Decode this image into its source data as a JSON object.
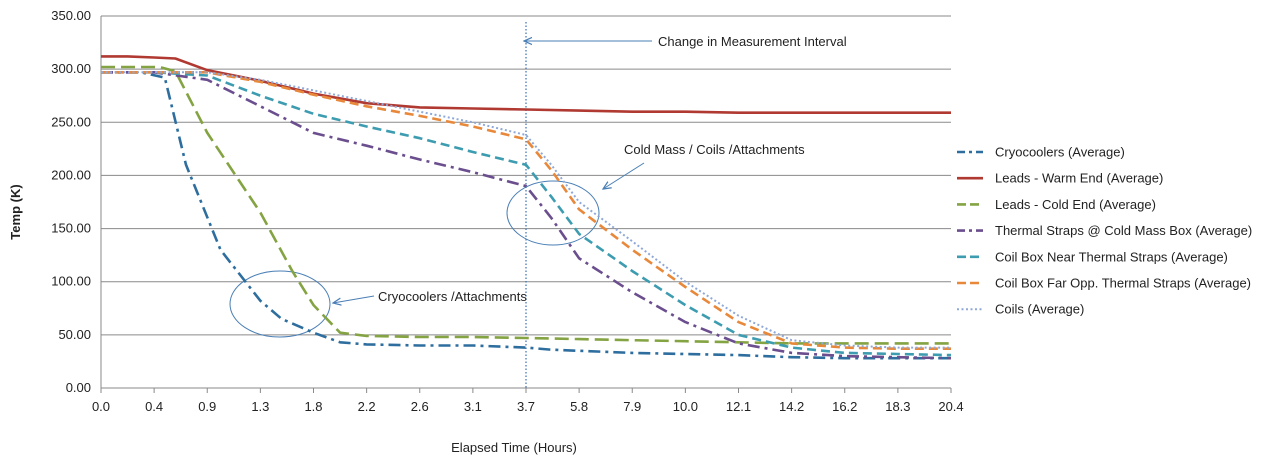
{
  "chart_data": {
    "type": "line",
    "title": "",
    "xlabel": "Elapsed Time (Hours)",
    "ylabel": "Temp (K)",
    "ylim": [
      0,
      350
    ],
    "y_ticks": [
      "0.00",
      "50.00",
      "100.00",
      "150.00",
      "200.00",
      "250.00",
      "300.00",
      "350.00"
    ],
    "categories": [
      "0.0",
      "0.4",
      "0.9",
      "1.3",
      "1.8",
      "2.2",
      "2.6",
      "3.1",
      "3.7",
      "5.8",
      "7.9",
      "10.0",
      "12.1",
      "14.2",
      "16.2",
      "18.3",
      "20.4"
    ],
    "grid": "horizontal",
    "legend_position": "right",
    "series": [
      {
        "name": "Cryocoolers (Average)",
        "color": "#2e6e9e",
        "dash": "dashdot",
        "values": [
          [
            0,
            297
          ],
          [
            0.3,
            297
          ],
          [
            0.5,
            292
          ],
          [
            0.7,
            210
          ],
          [
            1.0,
            130
          ],
          [
            1.3,
            82
          ],
          [
            1.5,
            65
          ],
          [
            1.8,
            52
          ],
          [
            2.0,
            43
          ],
          [
            2.2,
            41
          ],
          [
            2.6,
            40
          ],
          [
            3.1,
            40
          ],
          [
            3.7,
            38
          ],
          [
            4.7,
            36
          ],
          [
            5.8,
            35
          ],
          [
            7.9,
            33
          ],
          [
            10.0,
            32
          ],
          [
            12.1,
            31
          ],
          [
            14.2,
            29
          ],
          [
            16.2,
            28
          ],
          [
            18.3,
            28
          ],
          [
            20.4,
            28
          ]
        ]
      },
      {
        "name": "Leads - Warm End (Average)",
        "color": "#b03a32",
        "dash": "solid",
        "values": [
          [
            0,
            312
          ],
          [
            0.2,
            312
          ],
          [
            0.4,
            311
          ],
          [
            0.6,
            310
          ],
          [
            0.9,
            299
          ],
          [
            1.3,
            289
          ],
          [
            1.8,
            277
          ],
          [
            2.2,
            268
          ],
          [
            2.6,
            264
          ],
          [
            3.1,
            263
          ],
          [
            3.7,
            262
          ],
          [
            5.8,
            261
          ],
          [
            7.9,
            260
          ],
          [
            10.0,
            260
          ],
          [
            12.1,
            259
          ],
          [
            14.2,
            259
          ],
          [
            16.2,
            259
          ],
          [
            18.3,
            259
          ],
          [
            20.4,
            259
          ]
        ]
      },
      {
        "name": "Leads - Cold End (Average)",
        "color": "#84a342",
        "dash": "longdash",
        "values": [
          [
            0,
            302
          ],
          [
            0.3,
            302
          ],
          [
            0.45,
            302
          ],
          [
            0.6,
            298
          ],
          [
            0.9,
            240
          ],
          [
            1.3,
            165
          ],
          [
            1.6,
            110
          ],
          [
            1.8,
            78
          ],
          [
            2.0,
            52
          ],
          [
            2.2,
            49
          ],
          [
            2.6,
            48
          ],
          [
            3.1,
            48
          ],
          [
            3.7,
            47
          ],
          [
            5.8,
            46
          ],
          [
            7.9,
            45
          ],
          [
            10.0,
            44
          ],
          [
            12.1,
            43
          ],
          [
            14.2,
            42
          ],
          [
            16.2,
            42
          ],
          [
            18.3,
            42
          ],
          [
            20.4,
            42
          ]
        ]
      },
      {
        "name": "Thermal Straps @ Cold Mass Box (Average)",
        "color": "#6b4e8e",
        "dash": "dashdot",
        "values": [
          [
            0,
            297
          ],
          [
            0.4,
            297
          ],
          [
            0.9,
            290
          ],
          [
            1.3,
            265
          ],
          [
            1.8,
            240
          ],
          [
            2.2,
            228
          ],
          [
            2.6,
            215
          ],
          [
            3.1,
            203
          ],
          [
            3.7,
            190
          ],
          [
            4.7,
            160
          ],
          [
            5.8,
            122
          ],
          [
            7.9,
            90
          ],
          [
            10.0,
            62
          ],
          [
            12.1,
            42
          ],
          [
            14.2,
            33
          ],
          [
            16.2,
            30
          ],
          [
            18.3,
            29
          ],
          [
            20.4,
            28
          ]
        ]
      },
      {
        "name": "Coil Box Near Thermal Straps (Average)",
        "color": "#3d9cb0",
        "dash": "dashed",
        "values": [
          [
            0,
            297
          ],
          [
            0.4,
            297
          ],
          [
            0.9,
            294
          ],
          [
            1.3,
            275
          ],
          [
            1.8,
            258
          ],
          [
            2.2,
            246
          ],
          [
            2.6,
            235
          ],
          [
            3.1,
            222
          ],
          [
            3.7,
            210
          ],
          [
            4.7,
            180
          ],
          [
            5.8,
            145
          ],
          [
            7.9,
            110
          ],
          [
            10.0,
            78
          ],
          [
            12.1,
            50
          ],
          [
            14.2,
            38
          ],
          [
            16.2,
            33
          ],
          [
            18.3,
            32
          ],
          [
            20.4,
            31
          ]
        ]
      },
      {
        "name": "Coil Box Far Opp. Thermal Straps (Average)",
        "color": "#e8883a",
        "dash": "dashed",
        "values": [
          [
            0,
            297
          ],
          [
            0.4,
            297
          ],
          [
            0.9,
            297
          ],
          [
            1.3,
            288
          ],
          [
            1.8,
            276
          ],
          [
            2.2,
            265
          ],
          [
            2.6,
            256
          ],
          [
            3.1,
            246
          ],
          [
            3.7,
            234
          ],
          [
            4.7,
            205
          ],
          [
            5.8,
            168
          ],
          [
            7.9,
            130
          ],
          [
            10.0,
            95
          ],
          [
            12.1,
            62
          ],
          [
            14.2,
            42
          ],
          [
            16.2,
            38
          ],
          [
            18.3,
            37
          ],
          [
            20.4,
            37
          ]
        ]
      },
      {
        "name": "Coils (Average)",
        "color": "#8fa8d8",
        "dash": "dotted",
        "values": [
          [
            0,
            297
          ],
          [
            0.4,
            297
          ],
          [
            0.9,
            297
          ],
          [
            1.3,
            290
          ],
          [
            1.8,
            280
          ],
          [
            2.2,
            270
          ],
          [
            2.6,
            260
          ],
          [
            3.1,
            250
          ],
          [
            3.7,
            238
          ],
          [
            4.7,
            210
          ],
          [
            5.8,
            175
          ],
          [
            7.9,
            138
          ],
          [
            10.0,
            100
          ],
          [
            12.1,
            68
          ],
          [
            14.2,
            45
          ],
          [
            16.2,
            40
          ],
          [
            18.3,
            38
          ],
          [
            20.4,
            38
          ]
        ]
      }
    ],
    "annotations": [
      {
        "text": "Change in Measurement Interval",
        "x": 3.7,
        "marker": "vertical-dotted-line"
      },
      {
        "text": "Cold Mass / Coils /Attachments"
      },
      {
        "text": "Cryocoolers /Attachments"
      }
    ]
  }
}
